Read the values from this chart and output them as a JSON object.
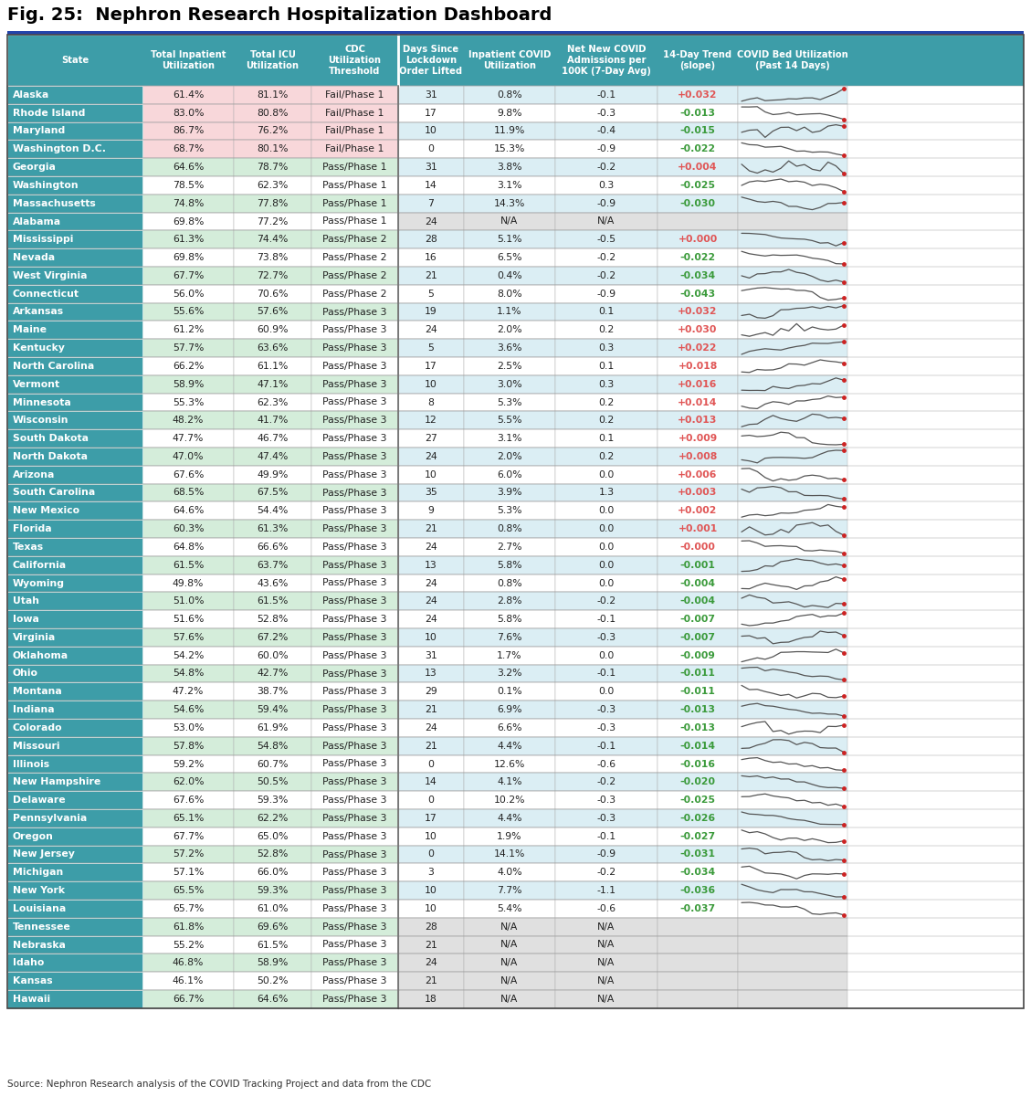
{
  "title": "Fig. 25:  Nephron Research Hospitalization Dashboard",
  "source": "Source: Nephron Research analysis of the COVID Tracking Project and data from the CDC",
  "rows": [
    [
      "Alaska",
      "61.4%",
      "81.1%",
      "Fail/Phase 1",
      "31",
      "0.8%",
      "-0.1",
      "+0.032"
    ],
    [
      "Rhode Island",
      "83.0%",
      "80.8%",
      "Fail/Phase 1",
      "17",
      "9.8%",
      "-0.3",
      "-0.013"
    ],
    [
      "Maryland",
      "86.7%",
      "76.2%",
      "Fail/Phase 1",
      "10",
      "11.9%",
      "-0.4",
      "-0.015"
    ],
    [
      "Washington D.C.",
      "68.7%",
      "80.1%",
      "Fail/Phase 1",
      "0",
      "15.3%",
      "-0.9",
      "-0.022"
    ],
    [
      "Georgia",
      "64.6%",
      "78.7%",
      "Pass/Phase 1",
      "31",
      "3.8%",
      "-0.2",
      "+0.004"
    ],
    [
      "Washington",
      "78.5%",
      "62.3%",
      "Pass/Phase 1",
      "14",
      "3.1%",
      "0.3",
      "-0.025"
    ],
    [
      "Massachusetts",
      "74.8%",
      "77.8%",
      "Pass/Phase 1",
      "7",
      "14.3%",
      "-0.9",
      "-0.030"
    ],
    [
      "Alabama",
      "69.8%",
      "77.2%",
      "Pass/Phase 1",
      "24",
      "N/A",
      "N/A",
      ""
    ],
    [
      "Mississippi",
      "61.3%",
      "74.4%",
      "Pass/Phase 2",
      "28",
      "5.1%",
      "-0.5",
      "+0.000"
    ],
    [
      "Nevada",
      "69.8%",
      "73.8%",
      "Pass/Phase 2",
      "16",
      "6.5%",
      "-0.2",
      "-0.022"
    ],
    [
      "West Virginia",
      "67.7%",
      "72.7%",
      "Pass/Phase 2",
      "21",
      "0.4%",
      "-0.2",
      "-0.034"
    ],
    [
      "Connecticut",
      "56.0%",
      "70.6%",
      "Pass/Phase 2",
      "5",
      "8.0%",
      "-0.9",
      "-0.043"
    ],
    [
      "Arkansas",
      "55.6%",
      "57.6%",
      "Pass/Phase 3",
      "19",
      "1.1%",
      "0.1",
      "+0.032"
    ],
    [
      "Maine",
      "61.2%",
      "60.9%",
      "Pass/Phase 3",
      "24",
      "2.0%",
      "0.2",
      "+0.030"
    ],
    [
      "Kentucky",
      "57.7%",
      "63.6%",
      "Pass/Phase 3",
      "5",
      "3.6%",
      "0.3",
      "+0.022"
    ],
    [
      "North Carolina",
      "66.2%",
      "61.1%",
      "Pass/Phase 3",
      "17",
      "2.5%",
      "0.1",
      "+0.018"
    ],
    [
      "Vermont",
      "58.9%",
      "47.1%",
      "Pass/Phase 3",
      "10",
      "3.0%",
      "0.3",
      "+0.016"
    ],
    [
      "Minnesota",
      "55.3%",
      "62.3%",
      "Pass/Phase 3",
      "8",
      "5.3%",
      "0.2",
      "+0.014"
    ],
    [
      "Wisconsin",
      "48.2%",
      "41.7%",
      "Pass/Phase 3",
      "12",
      "5.5%",
      "0.2",
      "+0.013"
    ],
    [
      "South Dakota",
      "47.7%",
      "46.7%",
      "Pass/Phase 3",
      "27",
      "3.1%",
      "0.1",
      "+0.009"
    ],
    [
      "North Dakota",
      "47.0%",
      "47.4%",
      "Pass/Phase 3",
      "24",
      "2.0%",
      "0.2",
      "+0.008"
    ],
    [
      "Arizona",
      "67.6%",
      "49.9%",
      "Pass/Phase 3",
      "10",
      "6.0%",
      "0.0",
      "+0.006"
    ],
    [
      "South Carolina",
      "68.5%",
      "67.5%",
      "Pass/Phase 3",
      "35",
      "3.9%",
      "1.3",
      "+0.003"
    ],
    [
      "New Mexico",
      "64.6%",
      "54.4%",
      "Pass/Phase 3",
      "9",
      "5.3%",
      "0.0",
      "+0.002"
    ],
    [
      "Florida",
      "60.3%",
      "61.3%",
      "Pass/Phase 3",
      "21",
      "0.8%",
      "0.0",
      "+0.001"
    ],
    [
      "Texas",
      "64.8%",
      "66.6%",
      "Pass/Phase 3",
      "24",
      "2.7%",
      "0.0",
      "-0.000"
    ],
    [
      "California",
      "61.5%",
      "63.7%",
      "Pass/Phase 3",
      "13",
      "5.8%",
      "0.0",
      "-0.001"
    ],
    [
      "Wyoming",
      "49.8%",
      "43.6%",
      "Pass/Phase 3",
      "24",
      "0.8%",
      "0.0",
      "-0.004"
    ],
    [
      "Utah",
      "51.0%",
      "61.5%",
      "Pass/Phase 3",
      "24",
      "2.8%",
      "-0.2",
      "-0.004"
    ],
    [
      "Iowa",
      "51.6%",
      "52.8%",
      "Pass/Phase 3",
      "24",
      "5.8%",
      "-0.1",
      "-0.007"
    ],
    [
      "Virginia",
      "57.6%",
      "67.2%",
      "Pass/Phase 3",
      "10",
      "7.6%",
      "-0.3",
      "-0.007"
    ],
    [
      "Oklahoma",
      "54.2%",
      "60.0%",
      "Pass/Phase 3",
      "31",
      "1.7%",
      "0.0",
      "-0.009"
    ],
    [
      "Ohio",
      "54.8%",
      "42.7%",
      "Pass/Phase 3",
      "13",
      "3.2%",
      "-0.1",
      "-0.011"
    ],
    [
      "Montana",
      "47.2%",
      "38.7%",
      "Pass/Phase 3",
      "29",
      "0.1%",
      "0.0",
      "-0.011"
    ],
    [
      "Indiana",
      "54.6%",
      "59.4%",
      "Pass/Phase 3",
      "21",
      "6.9%",
      "-0.3",
      "-0.013"
    ],
    [
      "Colorado",
      "53.0%",
      "61.9%",
      "Pass/Phase 3",
      "24",
      "6.6%",
      "-0.3",
      "-0.013"
    ],
    [
      "Missouri",
      "57.8%",
      "54.8%",
      "Pass/Phase 3",
      "21",
      "4.4%",
      "-0.1",
      "-0.014"
    ],
    [
      "Illinois",
      "59.2%",
      "60.7%",
      "Pass/Phase 3",
      "0",
      "12.6%",
      "-0.6",
      "-0.016"
    ],
    [
      "New Hampshire",
      "62.0%",
      "50.5%",
      "Pass/Phase 3",
      "14",
      "4.1%",
      "-0.2",
      "-0.020"
    ],
    [
      "Delaware",
      "67.6%",
      "59.3%",
      "Pass/Phase 3",
      "0",
      "10.2%",
      "-0.3",
      "-0.025"
    ],
    [
      "Pennsylvania",
      "65.1%",
      "62.2%",
      "Pass/Phase 3",
      "17",
      "4.4%",
      "-0.3",
      "-0.026"
    ],
    [
      "Oregon",
      "67.7%",
      "65.0%",
      "Pass/Phase 3",
      "10",
      "1.9%",
      "-0.1",
      "-0.027"
    ],
    [
      "New Jersey",
      "57.2%",
      "52.8%",
      "Pass/Phase 3",
      "0",
      "14.1%",
      "-0.9",
      "-0.031"
    ],
    [
      "Michigan",
      "57.1%",
      "66.0%",
      "Pass/Phase 3",
      "3",
      "4.0%",
      "-0.2",
      "-0.034"
    ],
    [
      "New York",
      "65.5%",
      "59.3%",
      "Pass/Phase 3",
      "10",
      "7.7%",
      "-1.1",
      "-0.036"
    ],
    [
      "Louisiana",
      "65.7%",
      "61.0%",
      "Pass/Phase 3",
      "10",
      "5.4%",
      "-0.6",
      "-0.037"
    ],
    [
      "Tennessee",
      "61.8%",
      "69.6%",
      "Pass/Phase 3",
      "28",
      "N/A",
      "N/A",
      ""
    ],
    [
      "Nebraska",
      "55.2%",
      "61.5%",
      "Pass/Phase 3",
      "21",
      "N/A",
      "N/A",
      ""
    ],
    [
      "Idaho",
      "46.8%",
      "58.9%",
      "Pass/Phase 3",
      "24",
      "N/A",
      "N/A",
      ""
    ],
    [
      "Kansas",
      "46.1%",
      "50.2%",
      "Pass/Phase 3",
      "21",
      "N/A",
      "N/A",
      ""
    ],
    [
      "Hawaii",
      "66.7%",
      "64.6%",
      "Pass/Phase 3",
      "18",
      "N/A",
      "N/A",
      ""
    ]
  ],
  "header_bg": "#3d9da8",
  "state_col_bg": "#3d9da8",
  "state_col_text": "#ffffff",
  "header_text": "#ffffff",
  "fail_row_bg_light": "#f8d7da",
  "fail_row_bg_dark": "#f8d7da",
  "pass_row_bg_even": "#d4edda",
  "pass_row_bg_odd": "#ffffff",
  "na_row_bg": "#e0e0e0",
  "right_pane_bg_even": "#dbeef4",
  "right_pane_bg_odd": "#ffffff",
  "trend_pos_color": "#e05555",
  "trend_neg_color": "#3a9a3a",
  "spark_line_color": "#555555",
  "spark_dot_color": "#cc2222",
  "title_color": "#000000",
  "divider_dark": "#2a7a80",
  "top_bar_color": "#2244aa"
}
